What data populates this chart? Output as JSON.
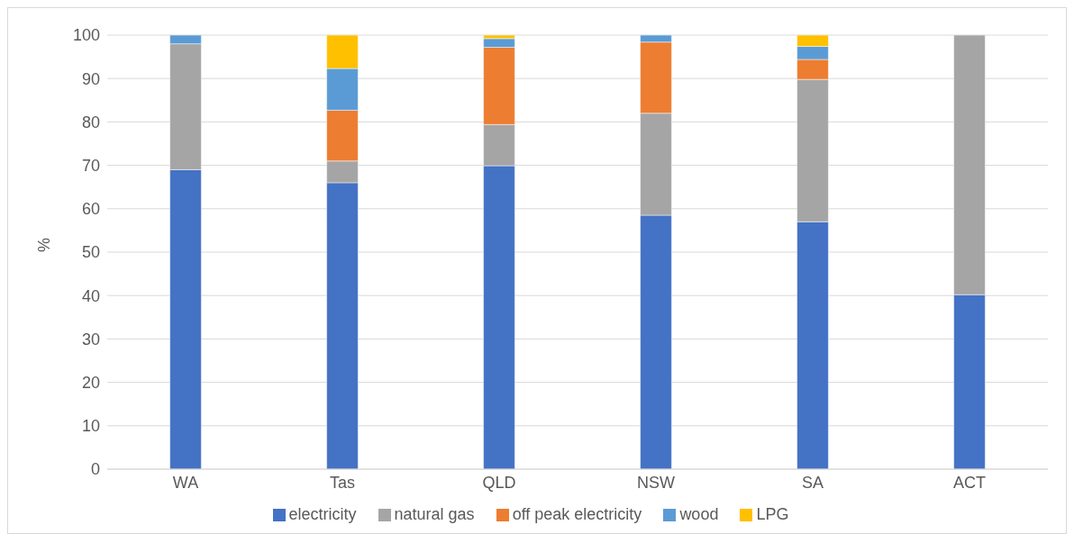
{
  "chart_data": {
    "type": "bar",
    "stacked": true,
    "ylabel": "%",
    "categories": [
      "WA",
      "Tas",
      "QLD",
      "NSW",
      "SA",
      "ACT"
    ],
    "series": [
      {
        "name": "electricity",
        "color": "#4472c4",
        "values": [
          69,
          66,
          69.9,
          58.5,
          57,
          40.2
        ]
      },
      {
        "name": "natural gas",
        "color": "#a5a5a5",
        "values": [
          29,
          5,
          9.5,
          23.5,
          32.8,
          59.8
        ]
      },
      {
        "name": "off peak electricity",
        "color": "#ed7d31",
        "values": [
          0,
          11.7,
          17.8,
          16.4,
          4.6,
          0
        ]
      },
      {
        "name": "wood",
        "color": "#5b9bd5",
        "values": [
          2,
          9.6,
          2,
          1.6,
          3,
          0
        ]
      },
      {
        "name": "LPG",
        "color": "#ffc000",
        "values": [
          0,
          7.7,
          0.8,
          0,
          2.6,
          0
        ]
      }
    ],
    "ylim": [
      0,
      100
    ],
    "yticks": [
      0,
      10,
      20,
      30,
      40,
      50,
      60,
      70,
      80,
      90,
      100
    ],
    "grid": "y",
    "legend": "bottom"
  }
}
